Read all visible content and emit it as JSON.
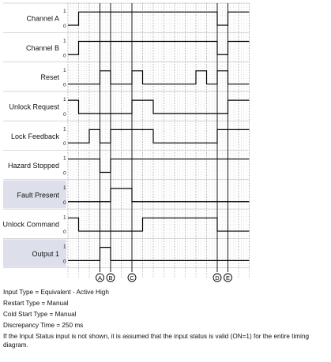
{
  "signals": [
    {
      "label": "Channel A",
      "high": "1",
      "low": "0",
      "shaded": false,
      "steps": [
        [
          0,
          0
        ],
        [
          1,
          1
        ],
        [
          14,
          0
        ],
        [
          15,
          1
        ]
      ]
    },
    {
      "label": "Channel B",
      "high": "1",
      "low": "0",
      "shaded": false,
      "steps": [
        [
          0,
          0
        ],
        [
          1,
          1
        ],
        [
          14,
          0
        ],
        [
          15,
          1
        ]
      ]
    },
    {
      "label": "Reset",
      "high": "1",
      "low": "0",
      "shaded": false,
      "steps": [
        [
          0,
          0
        ],
        [
          3,
          1
        ],
        [
          4,
          0
        ],
        [
          6,
          1
        ],
        [
          7,
          0
        ],
        [
          12,
          1
        ],
        [
          13,
          0
        ],
        [
          14,
          1
        ],
        [
          15,
          0
        ]
      ]
    },
    {
      "label": "Unlock Request",
      "high": "1",
      "low": "0",
      "shaded": false,
      "steps": [
        [
          0,
          1
        ],
        [
          1,
          0
        ],
        [
          6,
          1
        ],
        [
          8,
          0
        ],
        [
          15,
          1
        ]
      ]
    },
    {
      "label": "Lock Feedback",
      "high": "1",
      "low": "0",
      "shaded": false,
      "steps": [
        [
          0,
          0
        ],
        [
          2,
          1
        ],
        [
          3,
          0
        ],
        [
          4,
          1
        ],
        [
          8,
          0
        ],
        [
          14,
          1
        ]
      ]
    },
    {
      "label": "Hazard Stopped",
      "high": "1",
      "low": "0",
      "shaded": false,
      "steps": [
        [
          0,
          1
        ],
        [
          3,
          0
        ],
        [
          4,
          1
        ]
      ]
    },
    {
      "label": "Fault Present",
      "high": "1",
      "low": "0",
      "shaded": true,
      "steps": [
        [
          0,
          0
        ],
        [
          4,
          1
        ],
        [
          6,
          0
        ]
      ]
    },
    {
      "label": "Unlock Command",
      "high": "1",
      "low": "0",
      "shaded": false,
      "steps": [
        [
          0,
          1
        ],
        [
          1,
          0
        ],
        [
          7,
          1
        ],
        [
          10,
          1
        ],
        [
          14,
          0
        ]
      ]
    },
    {
      "label": "Output 1",
      "high": "1",
      "low": "0",
      "shaded": true,
      "steps": [
        [
          0,
          0
        ],
        [
          3,
          1
        ],
        [
          4,
          0
        ]
      ]
    }
  ],
  "markers": [
    {
      "letter": "A",
      "col": 3
    },
    {
      "letter": "B",
      "col": 4
    },
    {
      "letter": "C",
      "col": 6
    },
    {
      "letter": "D",
      "col": 14
    },
    {
      "letter": "E",
      "col": 15
    }
  ],
  "notes": {
    "input_type": "Input Type = Equivalent - Active High",
    "restart_type": "Restart Type = Manual",
    "cold_start_type": "Cold Start Type = Manual",
    "discrepancy_time": "Discrepancy Time = 250 ms",
    "footnote": "If the Input Status input is not shown, it is assumed that the input status is valid (ON=1) for the entire timing diagram."
  }
}
